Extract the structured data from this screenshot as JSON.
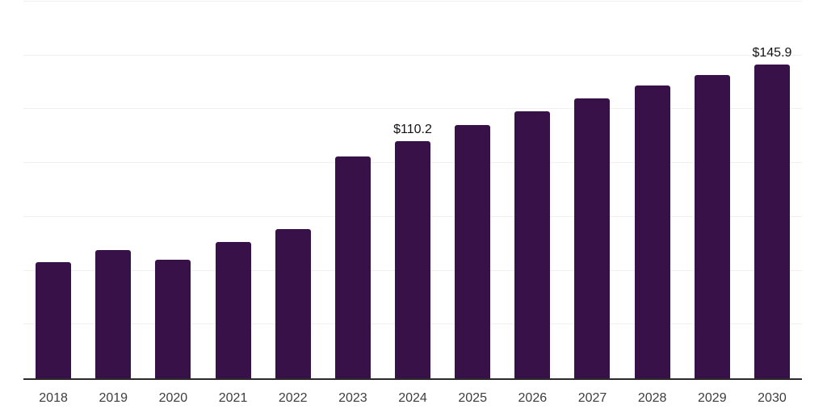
{
  "chart_data": {
    "type": "bar",
    "title": "",
    "xlabel": "",
    "ylabel": "",
    "categories": [
      "2018",
      "2019",
      "2020",
      "2021",
      "2022",
      "2023",
      "2024",
      "2025",
      "2026",
      "2027",
      "2028",
      "2029",
      "2030"
    ],
    "values": [
      54.1,
      59.7,
      55.2,
      63.4,
      69.4,
      103.2,
      110.2,
      117.8,
      124.0,
      130.2,
      135.9,
      140.9,
      145.9
    ],
    "annotations": [
      {
        "category": "2024",
        "text": "$110.2"
      },
      {
        "category": "2030",
        "text": "$145.9"
      }
    ],
    "ylim": [
      0,
      175
    ],
    "grid_step": 25,
    "grid": true,
    "legend": false,
    "y_axis_tick_labels_visible": false,
    "colors": {
      "bar": "#371148",
      "grid": "#f0f0f0",
      "axis": "#2b2b2b",
      "tick_label": "#3d3d3d",
      "data_label": "#131313",
      "background": "#ffffff"
    }
  }
}
